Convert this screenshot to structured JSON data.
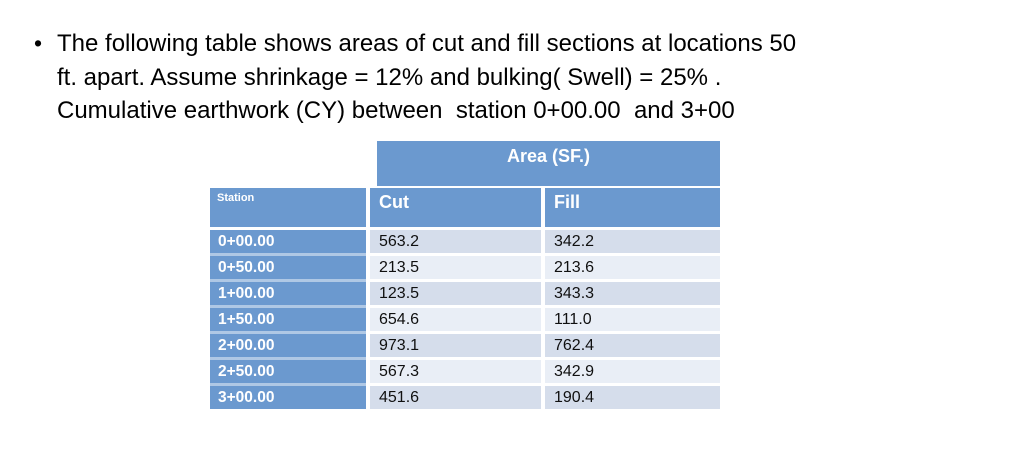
{
  "bullet": {
    "marker": "•",
    "lines": [
      "The following table shows areas of cut and fill sections at locations 50",
      "ft. apart. Assume shrinkage = 12% and bulking( Swell) = 25% .",
      "Cumulative earthwork (CY) between  station 0+00.00  and 3+00"
    ]
  },
  "table": {
    "area_header": "Area (SF.)",
    "columns": {
      "station": "Station",
      "cut": "Cut",
      "fill": "Fill"
    },
    "rows": [
      {
        "station": "0+00.00",
        "cut": "563.2",
        "fill": "342.2"
      },
      {
        "station": "0+50.00",
        "cut": "213.5",
        "fill": "213.6"
      },
      {
        "station": "1+00.00",
        "cut": "123.5",
        "fill": "343.3"
      },
      {
        "station": "1+50.00",
        "cut": "654.6",
        "fill": "111.0"
      },
      {
        "station": "2+00.00",
        "cut": "973.1",
        "fill": "762.4"
      },
      {
        "station": "2+50.00",
        "cut": "567.3",
        "fill": "342.9"
      },
      {
        "station": "3+00.00",
        "cut": "451.6",
        "fill": "190.4"
      }
    ]
  },
  "colors": {
    "header_blue": "#6B99CF",
    "row_dark": "#D5DDEB",
    "row_light": "#E9EEF6",
    "station_divider": "#AFC8E5",
    "text": "#000000"
  }
}
